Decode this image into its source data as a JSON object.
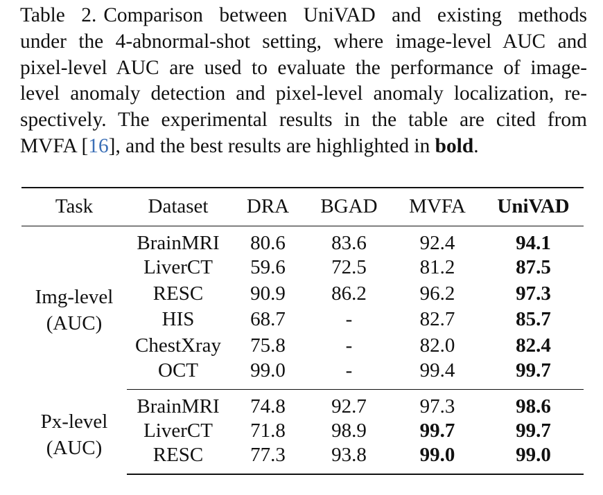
{
  "caption": {
    "label": "Table 2.",
    "line1": "Comparison between UniVAD and existing methods",
    "line2": "under the 4-abnormal-shot setting, where image-level AUC and",
    "line3": "pixel-level AUC are used to evaluate the performance of image-",
    "line4": "level anomaly detection and pixel-level anomaly localization, re-",
    "line5": "spectively.  The experimental results in the table are cited from",
    "line6_a": "MVFA [",
    "line6_ref": "16",
    "line6_b": "], and the best results are highlighted in ",
    "line6_bold": "bold",
    "line6_c": "."
  },
  "table": {
    "headers": [
      "Task",
      "Dataset",
      "DRA",
      "BGAD",
      "MVFA",
      "UniVAD"
    ],
    "groups": [
      {
        "task_line1": "Img-level",
        "task_line2": "(AUC)",
        "rows": [
          {
            "dataset": "BrainMRI",
            "dra": "80.6",
            "bgad": "83.6",
            "mvfa": "92.4",
            "univad": "94.1"
          },
          {
            "dataset": "LiverCT",
            "dra": "59.6",
            "bgad": "72.5",
            "mvfa": "81.2",
            "univad": "87.5"
          },
          {
            "dataset": "RESC",
            "dra": "90.9",
            "bgad": "86.2",
            "mvfa": "96.2",
            "univad": "97.3"
          },
          {
            "dataset": "HIS",
            "dra": "68.7",
            "bgad": "-",
            "mvfa": "82.7",
            "univad": "85.7"
          },
          {
            "dataset": "ChestXray",
            "dra": "75.8",
            "bgad": "-",
            "mvfa": "82.0",
            "univad": "82.4"
          },
          {
            "dataset": "OCT",
            "dra": "99.0",
            "bgad": "-",
            "mvfa": "99.4",
            "univad": "99.7"
          }
        ]
      },
      {
        "task_line1": "Px-level",
        "task_line2": "(AUC)",
        "rows": [
          {
            "dataset": "BrainMRI",
            "dra": "74.8",
            "bgad": "92.7",
            "mvfa": "97.3",
            "univad": "98.6"
          },
          {
            "dataset": "LiverCT",
            "dra": "71.8",
            "bgad": "98.9",
            "mvfa": "99.7",
            "univad": "99.7"
          },
          {
            "dataset": "RESC",
            "dra": "77.3",
            "bgad": "93.8",
            "mvfa": "99.0",
            "univad": "99.0"
          }
        ]
      }
    ]
  }
}
